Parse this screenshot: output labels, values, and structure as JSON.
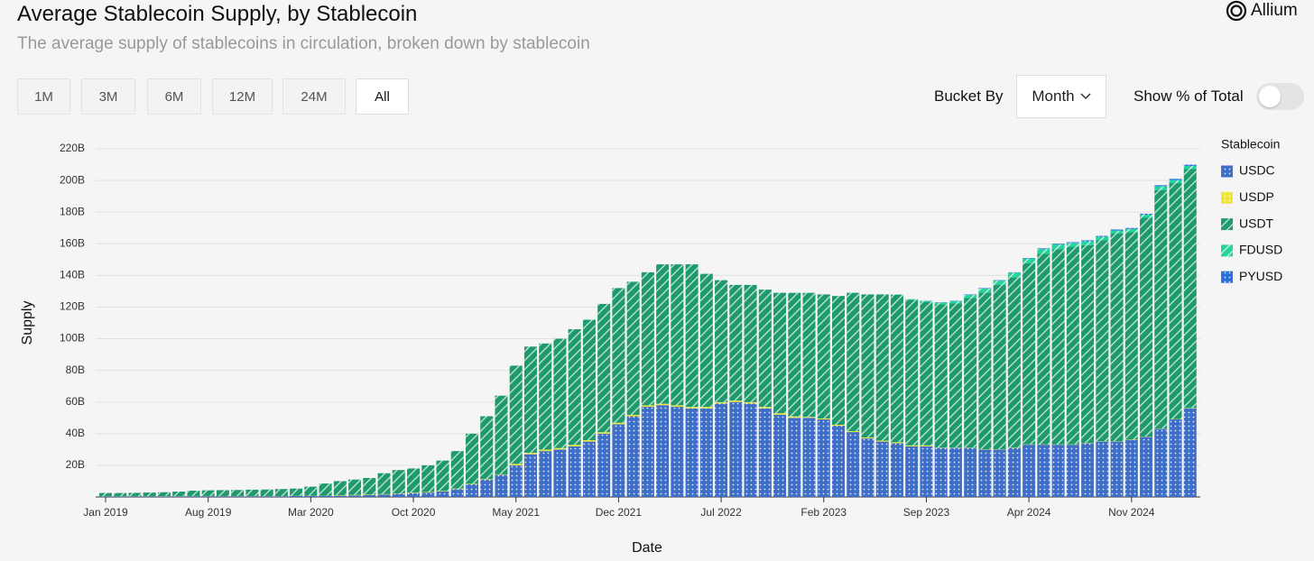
{
  "chart_data": {
    "type": "bar",
    "stacked": true,
    "title": "Average Stablecoin Supply, by Stablecoin",
    "subtitle": "The average supply of stablecoins in circulation, broken down by stablecoin",
    "x_label": "Date",
    "y_label": "Supply",
    "legend_title": "Stablecoin",
    "legend": "right",
    "categories": [
      "Jan 2019",
      null,
      null,
      null,
      null,
      null,
      null,
      "Aug 2019",
      null,
      null,
      null,
      null,
      null,
      null,
      "Mar 2020",
      null,
      null,
      null,
      null,
      null,
      null,
      "Oct 2020",
      null,
      null,
      null,
      null,
      null,
      null,
      "May 2021",
      null,
      null,
      null,
      null,
      null,
      null,
      "Dec 2021",
      null,
      null,
      null,
      null,
      null,
      null,
      "Jul 2022",
      null,
      null,
      null,
      null,
      null,
      null,
      "Feb 2023",
      null,
      null,
      null,
      null,
      null,
      null,
      "Sep 2023",
      null,
      null,
      null,
      null,
      null,
      null,
      "Apr 2024",
      null,
      null,
      null,
      null,
      null,
      null,
      "Nov 2024",
      null,
      null,
      null,
      null
    ],
    "ylim": [
      0,
      220
    ],
    "yticks": [
      {
        "value": 20,
        "label": "20B"
      },
      {
        "value": 40,
        "label": "40B"
      },
      {
        "value": 60,
        "label": "60B"
      },
      {
        "value": 80,
        "label": "80B"
      },
      {
        "value": 100,
        "label": "100B"
      },
      {
        "value": 120,
        "label": "120B"
      },
      {
        "value": 140,
        "label": "140B"
      },
      {
        "value": 160,
        "label": "160B"
      },
      {
        "value": 180,
        "label": "180B"
      },
      {
        "value": 200,
        "label": "200B"
      },
      {
        "value": 220,
        "label": "220B"
      }
    ],
    "grid": true,
    "series": [
      {
        "name": "USDC",
        "color": "#3f6ec6",
        "pattern": "dots",
        "values": [
          0.3,
          0.3,
          0.3,
          0.3,
          0.4,
          0.4,
          0.5,
          0.5,
          0.5,
          0.5,
          0.5,
          0.5,
          0.5,
          0.6,
          0.7,
          0.8,
          0.8,
          1.0,
          1.2,
          1.5,
          2.0,
          2.5,
          2.8,
          3.5,
          5,
          8,
          11,
          14,
          20,
          27,
          29,
          30,
          32,
          35,
          40,
          46,
          51,
          57,
          58,
          57,
          56,
          56,
          59,
          60,
          59,
          56,
          52,
          50,
          50,
          49,
          45,
          41,
          37,
          35,
          34,
          32,
          32,
          31,
          31,
          31,
          30,
          30,
          31,
          33,
          33,
          33,
          33,
          34,
          35,
          35,
          36,
          38,
          43,
          49,
          56
        ]
      },
      {
        "name": "USDP",
        "color": "#ece63a",
        "pattern": "dots",
        "values": [
          0.1,
          0.1,
          0.1,
          0.1,
          0.1,
          0.1,
          0.1,
          0.1,
          0.1,
          0.1,
          0.1,
          0.1,
          0.1,
          0.1,
          0.1,
          0.1,
          0.3,
          0.3,
          0.3,
          0.3,
          0.3,
          0.3,
          0.3,
          0.3,
          0.3,
          0.3,
          0.3,
          0.3,
          0.9,
          0.9,
          0.9,
          0.9,
          0.9,
          0.9,
          0.9,
          0.9,
          0.9,
          0.9,
          0.9,
          0.9,
          0.9,
          0.9,
          0.9,
          0.9,
          0.9,
          0.9,
          0.9,
          0.9,
          0.6,
          0.6,
          0.6,
          0.6,
          0.6,
          0.6,
          0.6,
          0.6,
          0.6,
          0.2,
          0.2,
          0.2,
          0.2,
          0.2,
          0.2,
          0.2,
          0.2,
          0.2,
          0.2,
          0.2,
          0.2,
          0.2,
          0.2,
          0.2,
          0.2,
          0.2,
          0.2
        ]
      },
      {
        "name": "USDT",
        "color": "#1f9a6c",
        "pattern": "stripes",
        "values": [
          2.1,
          2.1,
          2.2,
          2.4,
          2.5,
          2.9,
          3.4,
          3.6,
          3.7,
          3.8,
          4.0,
          4.1,
          4.4,
          4.6,
          5.7,
          7.6,
          8.9,
          9.7,
          10.5,
          13.2,
          14.7,
          15.2,
          16.9,
          19.2,
          23.7,
          31.7,
          39.7,
          49.7,
          62.1,
          67.1,
          67.1,
          69.1,
          73.1,
          76.1,
          81.1,
          85.1,
          84.1,
          84.1,
          88.1,
          89.1,
          90.1,
          84.1,
          77.1,
          73.1,
          74.1,
          74.1,
          76.1,
          78.1,
          78.4,
          78.4,
          81.4,
          87.4,
          90.4,
          92.4,
          93.1,
          91.9,
          90.5,
          90.6,
          91.1,
          94.5,
          99,
          103.7,
          107.5,
          114.5,
          120.5,
          123.4,
          124.9,
          124.9,
          127,
          131.2,
          131.2,
          138.2,
          150.7,
          149.1,
          151
        ]
      },
      {
        "name": "FDUSD",
        "color": "#25d39c",
        "pattern": "stripes",
        "values": [
          0,
          0,
          0,
          0,
          0,
          0,
          0,
          0,
          0,
          0,
          0,
          0,
          0,
          0,
          0,
          0,
          0,
          0,
          0,
          0,
          0,
          0,
          0,
          0,
          0,
          0,
          0,
          0,
          0,
          0,
          0,
          0,
          0,
          0,
          0,
          0,
          0,
          0,
          0,
          0,
          0,
          0,
          0,
          0,
          0,
          0,
          0,
          0,
          0,
          0,
          0,
          0,
          0,
          0,
          0.3,
          0.5,
          0.8,
          1,
          1.5,
          2,
          2.5,
          2.8,
          3,
          3,
          3,
          3,
          2.5,
          2.5,
          2.2,
          2,
          2,
          2,
          2.5,
          2,
          2
        ]
      },
      {
        "name": "PYUSD",
        "color": "#2b6fdc",
        "pattern": "dots",
        "values": [
          0,
          0,
          0,
          0,
          0,
          0,
          0,
          0,
          0,
          0,
          0,
          0,
          0,
          0,
          0,
          0,
          0,
          0,
          0,
          0,
          0,
          0,
          0,
          0,
          0,
          0,
          0,
          0,
          0,
          0,
          0,
          0,
          0,
          0,
          0,
          0,
          0,
          0,
          0,
          0,
          0,
          0,
          0,
          0,
          0,
          0,
          0,
          0,
          0,
          0,
          0,
          0,
          0,
          0,
          0,
          0,
          0.1,
          0.2,
          0.2,
          0.3,
          0.3,
          0.3,
          0.3,
          0.3,
          0.4,
          0.4,
          0.4,
          0.6,
          0.6,
          0.6,
          0.6,
          0.6,
          0.6,
          0.7,
          0.8
        ]
      }
    ]
  },
  "controls": {
    "ranges": [
      "1M",
      "3M",
      "6M",
      "12M",
      "24M",
      "All"
    ],
    "selected": "All",
    "bucket_label": "Bucket By",
    "bucket_value": "Month",
    "toggle_label": "Show % of Total",
    "toggle_on": false,
    "brand": "Allium"
  }
}
